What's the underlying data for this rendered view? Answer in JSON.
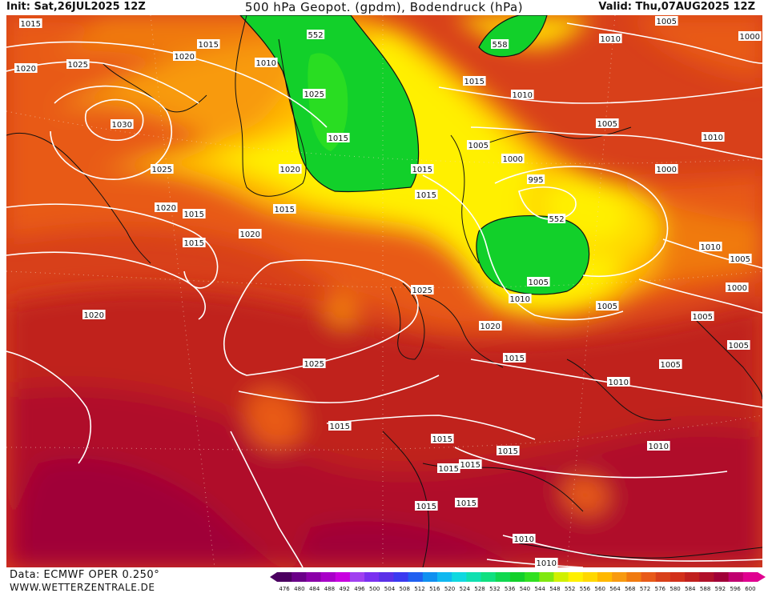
{
  "header": {
    "init": "Init: Sat,26JUL2025 12Z",
    "title": "500 hPa Geopot. (gpdm), Bodendruck (hPa)",
    "valid": "Valid: Thu,07AUG2025 12Z"
  },
  "footer": {
    "source": "Data: ECMWF OPER 0.250°",
    "site": "WWW.WETTERZENTRALE.DE"
  },
  "colors": {
    "green": "#12d02a",
    "yellow": "#fff000",
    "orange": "#f07a10",
    "red": "#d2301a",
    "darkred": "#b0102a",
    "crimson": "#a0004a"
  },
  "legend": {
    "ticks": [
      "476",
      "480",
      "484",
      "488",
      "492",
      "496",
      "500",
      "504",
      "508",
      "512",
      "516",
      "520",
      "524",
      "528",
      "532",
      "536",
      "540",
      "544",
      "548",
      "552",
      "556",
      "560",
      "564",
      "568",
      "572",
      "576",
      "580",
      "584",
      "588",
      "592",
      "596",
      "600"
    ],
    "colors": [
      "#4b0060",
      "#6a0088",
      "#8a00a8",
      "#a800c8",
      "#c800e0",
      "#a040f0",
      "#7a30f0",
      "#5a30e8",
      "#3a3af0",
      "#2060f0",
      "#1090f0",
      "#10b8f0",
      "#10d8e0",
      "#10e0b0",
      "#10e080",
      "#10d850",
      "#12d02a",
      "#30e020",
      "#80e810",
      "#d0f000",
      "#fff000",
      "#ffd800",
      "#ffb800",
      "#f89a10",
      "#f07a10",
      "#e85a18",
      "#d8401a",
      "#d2301a",
      "#c0201e",
      "#b0102a",
      "#a00038",
      "#c00070",
      "#e00090"
    ]
  },
  "labels": {
    "contours": [
      {
        "t": "1015"
      },
      {
        "t": "1020"
      },
      {
        "t": "1015"
      },
      {
        "t": "1010"
      },
      {
        "t": "1020"
      },
      {
        "t": "1025"
      },
      {
        "t": "1030"
      },
      {
        "t": "1025"
      },
      {
        "t": "1020"
      },
      {
        "t": "1015"
      },
      {
        "t": "1015"
      },
      {
        "t": "1020"
      },
      {
        "t": "1015"
      },
      {
        "t": "1020"
      },
      {
        "t": "1025"
      },
      {
        "t": "1015"
      },
      {
        "t": "1015"
      },
      {
        "t": "1015"
      },
      {
        "t": "1010"
      },
      {
        "t": "1005"
      },
      {
        "t": "1000"
      },
      {
        "t": "995"
      },
      {
        "t": "1000"
      },
      {
        "t": "1005"
      },
      {
        "t": "1010"
      },
      {
        "t": "1015"
      },
      {
        "t": "1010"
      },
      {
        "t": "1005"
      },
      {
        "t": "1000"
      },
      {
        "t": "1010"
      },
      {
        "t": "1005"
      },
      {
        "t": "1005"
      },
      {
        "t": "1000"
      },
      {
        "t": "1005"
      },
      {
        "t": "1005"
      },
      {
        "t": "1005"
      },
      {
        "t": "1010"
      },
      {
        "t": "1010"
      },
      {
        "t": "1015"
      },
      {
        "t": "1020"
      },
      {
        "t": "1025"
      },
      {
        "t": "1020"
      },
      {
        "t": "1025"
      },
      {
        "t": "1015"
      },
      {
        "t": "1015"
      },
      {
        "t": "1015"
      },
      {
        "t": "1015"
      },
      {
        "t": "1015"
      },
      {
        "t": "1015"
      },
      {
        "t": "1010"
      },
      {
        "t": "1010"
      },
      {
        "t": "1010"
      },
      {
        "t": "1005"
      },
      {
        "t": "1015"
      }
    ],
    "geopot": [
      {
        "t": "552"
      },
      {
        "t": "558"
      },
      {
        "t": "552"
      }
    ]
  }
}
